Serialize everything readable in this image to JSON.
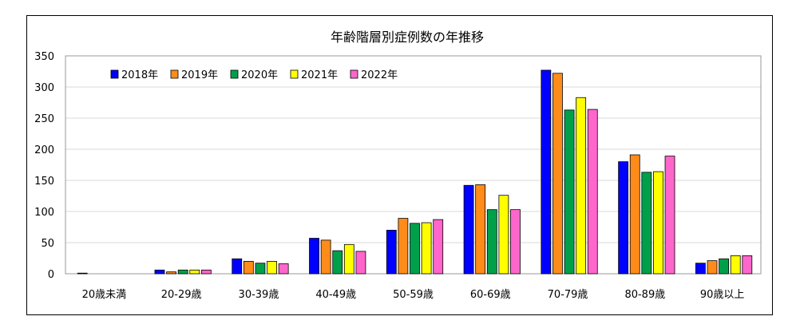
{
  "chart_data": {
    "type": "bar",
    "title": "年齢階層別症例数の年推移",
    "xlabel": "",
    "ylabel": "",
    "ylim": [
      0,
      350
    ],
    "yticks": [
      0,
      50,
      100,
      150,
      200,
      250,
      300,
      350
    ],
    "grid": true,
    "legend_position": "top-left",
    "categories": [
      "20歳未満",
      "20-29歳",
      "30-39歳",
      "40-49歳",
      "50-59歳",
      "60-69歳",
      "70-79歳",
      "80-89歳",
      "90歳以上"
    ],
    "series": [
      {
        "name": "2018年",
        "color": "#0000FF",
        "values": [
          1,
          6,
          24,
          57,
          70,
          142,
          327,
          180,
          17
        ]
      },
      {
        "name": "2019年",
        "color": "#FF8C1A",
        "values": [
          0,
          3,
          20,
          54,
          89,
          143,
          322,
          191,
          21
        ]
      },
      {
        "name": "2020年",
        "color": "#00A04A",
        "values": [
          0,
          6,
          17,
          37,
          81,
          103,
          263,
          163,
          24
        ]
      },
      {
        "name": "2021年",
        "color": "#FFFF00",
        "values": [
          0,
          6,
          20,
          47,
          82,
          126,
          283,
          164,
          29
        ]
      },
      {
        "name": "2022年",
        "color": "#FF66CC",
        "values": [
          0,
          6,
          16,
          36,
          87,
          103,
          264,
          189,
          29
        ]
      }
    ]
  }
}
